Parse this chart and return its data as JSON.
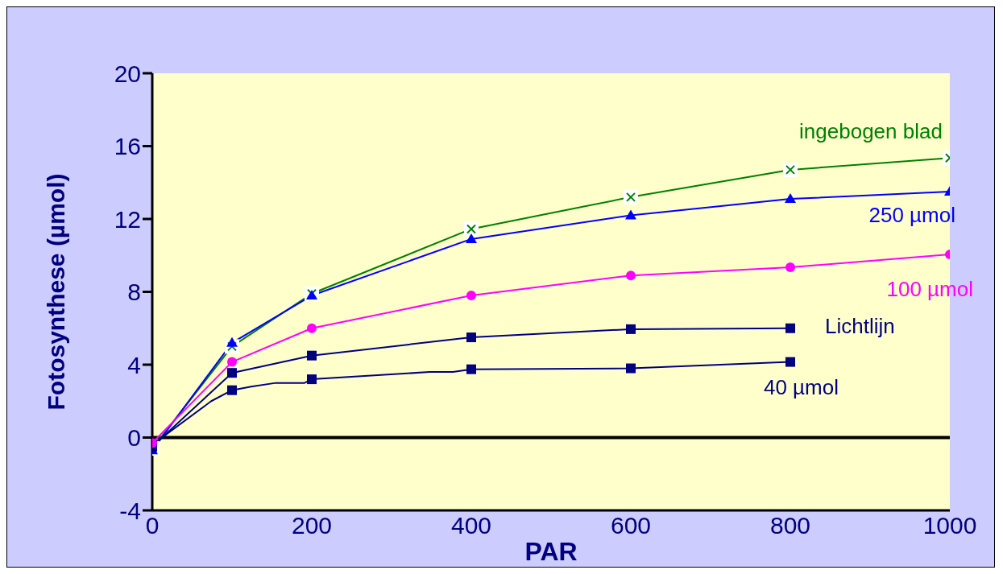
{
  "chart_data": {
    "type": "line",
    "xlabel": "PAR",
    "ylabel": "Fotosynthese (µmol)",
    "x": [
      0,
      100,
      200,
      400,
      600,
      800,
      1000
    ],
    "series": [
      {
        "name": "ingebogen blad",
        "color": "#008000",
        "marker": "cross",
        "values": [
          -0.6,
          5.0,
          7.9,
          11.45,
          13.2,
          14.7,
          15.35
        ]
      },
      {
        "name": "250 µmol",
        "color": "#0000ff",
        "marker": "triangle",
        "values": [
          -0.7,
          5.2,
          7.8,
          10.9,
          12.2,
          13.1,
          13.5
        ]
      },
      {
        "name": "100 µmol",
        "color": "#ff00ff",
        "marker": "circle",
        "values": [
          -0.3,
          4.15,
          6.0,
          7.8,
          8.9,
          9.35,
          10.05
        ]
      },
      {
        "name": "Lichtlijn",
        "color": "#000080",
        "marker": "square",
        "values": [
          -0.5,
          3.55,
          4.5,
          5.5,
          5.95,
          6.0,
          null
        ]
      },
      {
        "name": "40 µmol",
        "color": "#000080",
        "marker": "square",
        "x": [
          0,
          74,
          100,
          124,
          155,
          191,
          200,
          348,
          377,
          400,
          600,
          800
        ],
        "values": [
          -0.4,
          2.0,
          2.6,
          2.8,
          3.0,
          3.0,
          3.2,
          3.6,
          3.6,
          3.75,
          3.8,
          4.15
        ]
      }
    ],
    "xlim": [
      0,
      1000
    ],
    "xticks": [
      0,
      200,
      400,
      600,
      800,
      1000
    ],
    "ylim": [
      -4,
      20
    ],
    "yticks": [
      -4,
      0,
      4,
      8,
      12,
      16,
      20
    ],
    "ref_lines": [
      {
        "axis": "y",
        "value": 0,
        "color": "#000000"
      }
    ],
    "line_style": "solid"
  }
}
